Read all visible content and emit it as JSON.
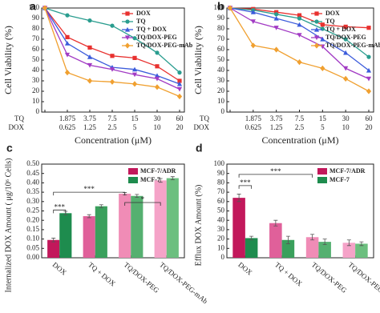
{
  "chart_data": [
    {
      "type": "line",
      "panel_label": "a",
      "ylabel": "Cell Viability (%)",
      "xlabel": "Concentration (μM)",
      "x_rows": [
        "TQ",
        "DOX"
      ],
      "categories": [
        null,
        "1.875",
        "3.75",
        "7.5",
        "15",
        "30",
        "60"
      ],
      "categories2": [
        null,
        "0.625",
        "1.25",
        "2.5",
        "5",
        "10",
        "20"
      ],
      "ylim": [
        0,
        100
      ],
      "yticks": [
        0,
        10,
        20,
        30,
        40,
        50,
        60,
        70,
        80,
        90,
        100
      ],
      "series": [
        {
          "name": "DOX",
          "color": "#e8312f",
          "marker": "square",
          "values": [
            100,
            72,
            62,
            54,
            52,
            44,
            30
          ]
        },
        {
          "name": "TQ",
          "color": "#2a9d8f",
          "marker": "circle",
          "values": [
            100,
            93,
            88,
            83,
            71,
            57,
            38
          ]
        },
        {
          "name": "TQ + DOX",
          "color": "#3b5bdb",
          "marker": "triangle",
          "values": [
            100,
            66,
            53,
            43,
            41,
            35,
            27
          ]
        },
        {
          "name": "TQ/DOX-PEG",
          "color": "#a23bc4",
          "marker": "triangle-down",
          "values": [
            100,
            55,
            45,
            41,
            36,
            32,
            22
          ]
        },
        {
          "name": "TQ/DOX-PEG-mAb",
          "color": "#f0a030",
          "marker": "diamond",
          "values": [
            100,
            38,
            30,
            29,
            27,
            24,
            15
          ]
        }
      ]
    },
    {
      "type": "line",
      "panel_label": "b",
      "ylabel": "Cell Viability (%)",
      "xlabel": "Concentration (μM)",
      "x_rows": [
        "TQ",
        "DOX"
      ],
      "categories": [
        null,
        "1.875",
        "3.75",
        "7.5",
        "15",
        "30",
        "60"
      ],
      "categories2": [
        null,
        "0.625",
        "1.25",
        "2.5",
        "5",
        "10",
        "20"
      ],
      "ylim": [
        0,
        100
      ],
      "yticks": [
        0,
        10,
        20,
        30,
        40,
        50,
        60,
        70,
        80,
        90,
        100
      ],
      "series": [
        {
          "name": "DOX",
          "color": "#e8312f",
          "marker": "square",
          "values": [
            100,
            99,
            96,
            93,
            84,
            82,
            81
          ]
        },
        {
          "name": "TQ",
          "color": "#2a9d8f",
          "marker": "circle",
          "values": [
            100,
            98,
            94,
            90,
            80,
            70,
            53
          ]
        },
        {
          "name": "TQ + DOX",
          "color": "#3b5bdb",
          "marker": "triangle",
          "values": [
            100,
            96,
            90,
            84,
            70,
            57,
            40
          ]
        },
        {
          "name": "TQ/DOX-PEG",
          "color": "#a23bc4",
          "marker": "triangle-down",
          "values": [
            100,
            87,
            81,
            74,
            63,
            42,
            32
          ]
        },
        {
          "name": "TQ/DOX-PEG-mAb",
          "color": "#f0a030",
          "marker": "diamond",
          "values": [
            100,
            64,
            60,
            48,
            42,
            32,
            20
          ]
        }
      ]
    },
    {
      "type": "bar",
      "panel_label": "c",
      "ylabel": "Internalized DOX Amount ( μg/10⁶ Cells)",
      "categories": [
        "DOX",
        "TQ + DOX",
        "TQ/DOX-PEG",
        "TQ/DOX-PEG-mAb"
      ],
      "ylim": [
        0,
        0.5
      ],
      "yticks": [
        {
          "value": 0,
          "label": "0.00"
        },
        {
          "value": 0.05,
          "label": "0.05"
        },
        {
          "value": 0.1,
          "label": "0.10"
        },
        {
          "value": 0.15,
          "label": "0.15"
        },
        {
          "value": 0.2,
          "label": "0.20"
        },
        {
          "value": 0.25,
          "label": "0.25"
        },
        {
          "value": 0.3,
          "label": "0.30"
        },
        {
          "value": 0.35,
          "label": "0.35"
        },
        {
          "value": 0.4,
          "label": "0.40"
        },
        {
          "value": 0.45,
          "label": "0.45"
        },
        {
          "value": 0.5,
          "label": "0.50"
        }
      ],
      "series": [
        {
          "name": "MCF-7/ADR",
          "color": "#c2185b",
          "colors": [
            "#c2185b",
            "#e0609a",
            "#f08cb6",
            "#f5a3c8"
          ],
          "values": [
            0.095,
            0.222,
            0.342,
            0.413
          ],
          "errors": [
            0.01,
            0.008,
            0.006,
            0.01
          ]
        },
        {
          "name": "MCF-7",
          "color": "#1e8c4e",
          "colors": [
            "#1e8c4e",
            "#3aa05c",
            "#55b070",
            "#6cbf7f"
          ],
          "values": [
            0.238,
            0.275,
            0.33,
            0.425
          ],
          "errors": [
            0.01,
            0.008,
            0.008,
            0.008
          ]
        }
      ],
      "annotations": [
        "***",
        "***",
        "*"
      ]
    },
    {
      "type": "bar",
      "panel_label": "d",
      "ylabel": "Efflux DOX Amount (%)",
      "categories": [
        "DOX",
        "TQ + DOX",
        "TQ/DOX-PEG",
        "TQ/DOX-PEG-mAb"
      ],
      "ylim": [
        0,
        100
      ],
      "yticks": [
        0,
        10,
        20,
        30,
        40,
        50,
        60,
        70,
        80,
        90,
        100
      ],
      "series": [
        {
          "name": "MCF-7/ADR",
          "color": "#c2185b",
          "colors": [
            "#c2185b",
            "#e0609a",
            "#f08cb6",
            "#f5a3c8"
          ],
          "values": [
            64,
            37,
            22,
            16
          ],
          "errors": [
            4,
            3,
            3,
            3
          ]
        },
        {
          "name": "MCF-7",
          "color": "#1e8c4e",
          "colors": [
            "#1e8c4e",
            "#3aa05c",
            "#55b070",
            "#6cbf7f"
          ],
          "values": [
            21,
            19,
            17,
            15
          ],
          "errors": [
            2,
            4,
            3,
            2
          ]
        }
      ],
      "annotations": [
        "***",
        "***"
      ]
    }
  ]
}
